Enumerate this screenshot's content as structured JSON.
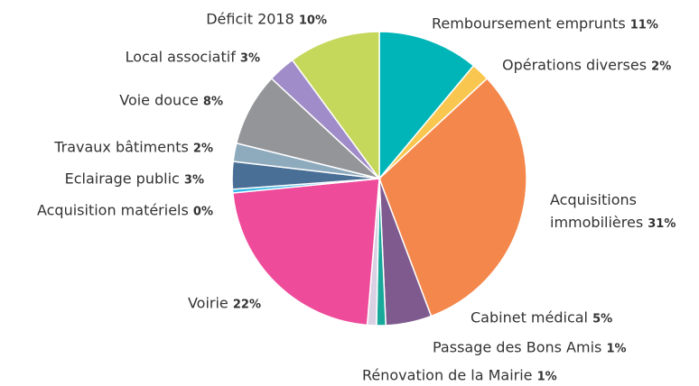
{
  "chart_data": {
    "type": "pie",
    "categories": [
      "Remboursement emprunts",
      "Opérations diverses",
      "Acquisitions immobilières",
      "Cabinet médical",
      "Passage des Bons Amis",
      "Rénovation de la Mairie",
      "Voirie",
      "Acquisition matériels",
      "Eclairage public",
      "Travaux bâtiments",
      "Voie douce",
      "Local associatif",
      "Déficit 2018"
    ],
    "values": [
      11,
      2,
      31,
      5,
      1,
      1,
      22,
      0.4,
      3,
      2,
      8,
      3,
      10
    ],
    "value_labels": [
      "11%",
      "2%",
      "31%",
      "5%",
      "1%",
      "1%",
      "22%",
      "0%",
      "3%",
      "2%",
      "8%",
      "3%",
      "10%"
    ],
    "colors": [
      "#00b5b8",
      "#f9c74f",
      "#f4874b",
      "#7e5a8e",
      "#19a99a",
      "#d9d0e3",
      "#ee4c9b",
      "#2fb8e6",
      "#4a6f96",
      "#8eaabd",
      "#939598",
      "#a08cc8",
      "#c5d85c"
    ]
  }
}
